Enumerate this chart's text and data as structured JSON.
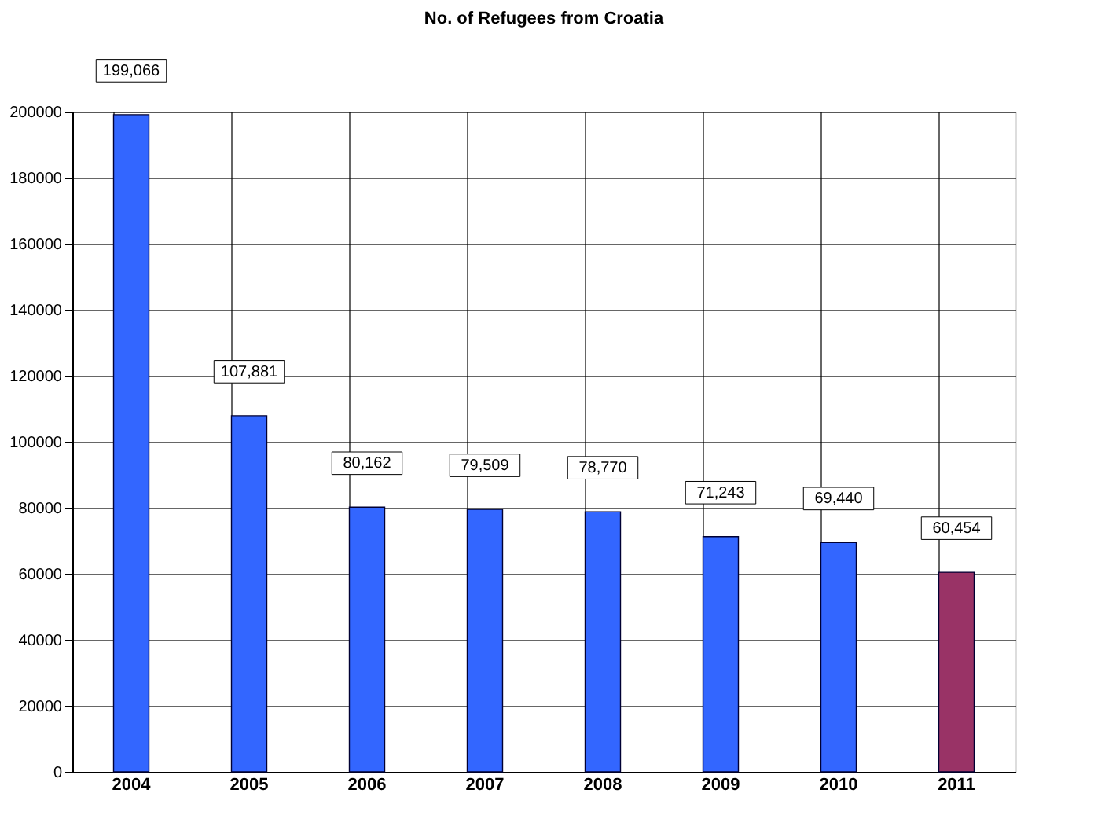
{
  "chart_data": {
    "type": "bar",
    "title": "No. of Refugees from Croatia",
    "categories": [
      "2004",
      "2005",
      "2006",
      "2007",
      "2008",
      "2009",
      "2010",
      "2011"
    ],
    "values": [
      199066,
      107881,
      80162,
      79509,
      78770,
      71243,
      69440,
      60454
    ],
    "colors": [
      "#3366ff",
      "#3366ff",
      "#3366ff",
      "#3366ff",
      "#3366ff",
      "#3366ff",
      "#3366ff",
      "#993366"
    ],
    "value_labels": [
      "199,066",
      "107,881",
      "80,162",
      "79,509",
      "78,770",
      "71,243",
      "69,440",
      "60,454"
    ],
    "ylim": [
      0,
      200000
    ],
    "yticks": [
      0,
      20000,
      40000,
      60000,
      80000,
      100000,
      120000,
      140000,
      160000,
      180000,
      200000
    ],
    "grid": true
  }
}
